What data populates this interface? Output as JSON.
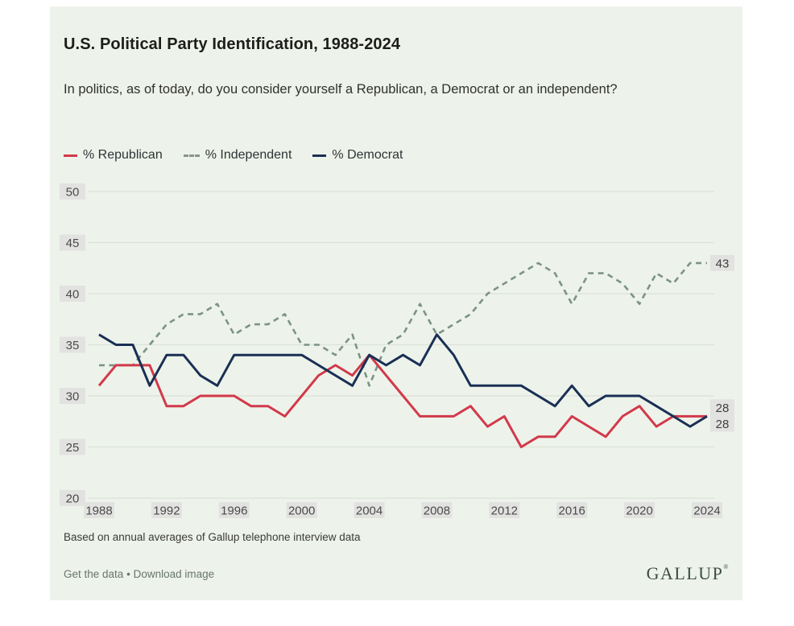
{
  "header": {
    "title": "U.S. Political Party Identification, 1988-2024",
    "subtitle": "In politics, as of today, do you consider yourself a Republican, a Democrat or an independent?"
  },
  "chart_data": {
    "type": "line",
    "title": "U.S. Political Party Identification, 1988-2024",
    "x_start": 1988,
    "x_end": 2024,
    "x": [
      1988,
      1989,
      1990,
      1991,
      1992,
      1993,
      1994,
      1995,
      1996,
      1997,
      1998,
      1999,
      2000,
      2001,
      2002,
      2003,
      2004,
      2005,
      2006,
      2007,
      2008,
      2009,
      2010,
      2011,
      2012,
      2013,
      2014,
      2015,
      2016,
      2017,
      2018,
      2019,
      2020,
      2021,
      2022,
      2023,
      2024
    ],
    "series": [
      {
        "name": "% Republican",
        "color": "#d2394b",
        "style": "solid",
        "values": [
          31,
          33,
          33,
          33,
          29,
          29,
          30,
          30,
          30,
          29,
          29,
          28,
          30,
          32,
          33,
          32,
          34,
          32,
          30,
          28,
          28,
          28,
          29,
          27,
          28,
          25,
          26,
          26,
          28,
          27,
          26,
          28,
          29,
          27,
          28,
          28,
          28
        ]
      },
      {
        "name": "% Independent",
        "color": "#7d9287",
        "style": "dashed",
        "values": [
          33,
          33,
          33,
          35,
          37,
          38,
          38,
          39,
          36,
          37,
          37,
          38,
          35,
          35,
          34,
          36,
          31,
          35,
          36,
          39,
          36,
          37,
          38,
          40,
          41,
          42,
          43,
          42,
          39,
          42,
          42,
          41,
          39,
          42,
          41,
          43,
          43
        ]
      },
      {
        "name": "% Democrat",
        "color": "#1a2f55",
        "style": "solid",
        "values": [
          36,
          35,
          35,
          31,
          34,
          34,
          32,
          31,
          34,
          34,
          34,
          34,
          34,
          33,
          32,
          31,
          34,
          33,
          34,
          33,
          36,
          34,
          31,
          31,
          31,
          31,
          30,
          29,
          31,
          29,
          30,
          30,
          30,
          29,
          28,
          27,
          28
        ]
      }
    ],
    "ylim": [
      20,
      50
    ],
    "yticks": [
      50,
      45,
      40,
      35,
      30,
      25,
      20
    ],
    "xticks": [
      1988,
      1992,
      1996,
      2000,
      2004,
      2008,
      2012,
      2016,
      2020,
      2024
    ],
    "grid": true,
    "legend_position": "top",
    "end_labels": [
      {
        "series": "% Independent",
        "value": "43"
      },
      {
        "series": "% Democrat",
        "value": "28"
      },
      {
        "series": "% Republican",
        "value": "28"
      }
    ],
    "colors": {
      "background": "#edf3ea",
      "gridline": "#dce2d8",
      "tick_chip_bg": "#e2e2e0",
      "tick_text": "#4b4b4b"
    }
  },
  "footer": {
    "note": "Based on annual averages of Gallup telephone interview data",
    "link1": "Get the data",
    "separator": "•",
    "link2": "Download image",
    "brand": "GALLUP",
    "brand_mark": "®"
  }
}
